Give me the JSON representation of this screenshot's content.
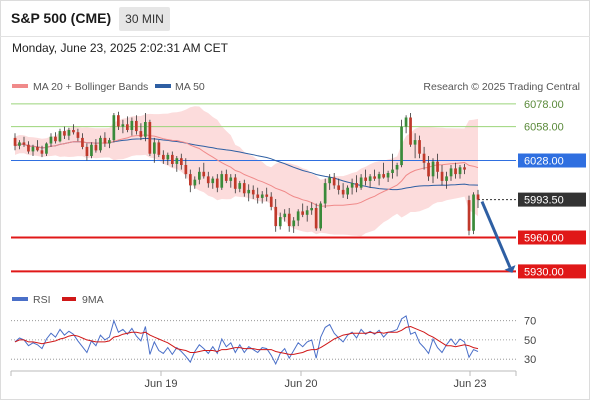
{
  "header": {
    "title": "S&P 500 (CME)",
    "timeframe": "30 MIN",
    "datetime": "Monday, June 23, 2025 2:02:31 AM CET"
  },
  "legend": {
    "ma20": "MA 20 + Bollinger Bands",
    "ma50": "MA 50",
    "credit": "Research © 2025 Trading Central",
    "rsi": "RSI",
    "ma9": "9MA"
  },
  "colors": {
    "ma20": "#f08a8a",
    "band_fill": "#fbd6d6",
    "ma50": "#2e5fa3",
    "bull": "#3a8a3a",
    "bear": "#c0392b",
    "green_level": "#9bd47a",
    "blue_level": "#2f6fe0",
    "red_level": "#e01818",
    "current": "#333333",
    "arrow": "#2e5fa3",
    "rsi": "#4a6fc8",
    "ma9": "#d01818"
  },
  "chart_data": [
    {
      "type": "candlestick",
      "title": "",
      "x_labels": [
        "Jun 19",
        "Jun 20",
        "Jun 23"
      ],
      "ylim": [
        5918,
        6085
      ],
      "levels": [
        {
          "value": 6078.0,
          "label": "6078.00",
          "style": "green"
        },
        {
          "value": 6058.0,
          "label": "6058.00",
          "style": "green"
        },
        {
          "value": 6028.0,
          "label": "6028.00",
          "style": "blue"
        },
        {
          "value": 5993.5,
          "label": "5993.50",
          "style": "current"
        },
        {
          "value": 5960.0,
          "label": "5960.00",
          "style": "red"
        },
        {
          "value": 5930.0,
          "label": "5930.00",
          "style": "red"
        }
      ],
      "candles": [
        [
          6048,
          6052,
          6037,
          6041
        ],
        [
          6041,
          6046,
          6038,
          6044
        ],
        [
          6044,
          6049,
          6040,
          6042
        ],
        [
          6042,
          6045,
          6034,
          6036
        ],
        [
          6036,
          6042,
          6032,
          6040
        ],
        [
          6040,
          6046,
          6036,
          6037
        ],
        [
          6037,
          6041,
          6031,
          6034
        ],
        [
          6034,
          6044,
          6032,
          6043
        ],
        [
          6043,
          6052,
          6040,
          6049
        ],
        [
          6049,
          6053,
          6043,
          6045
        ],
        [
          6045,
          6056,
          6044,
          6054
        ],
        [
          6054,
          6058,
          6047,
          6050
        ],
        [
          6050,
          6057,
          6046,
          6055
        ],
        [
          6055,
          6060,
          6051,
          6053
        ],
        [
          6053,
          6056,
          6045,
          6048
        ],
        [
          6048,
          6052,
          6038,
          6040
        ],
        [
          6040,
          6043,
          6028,
          6032
        ],
        [
          6032,
          6044,
          6030,
          6042
        ],
        [
          6042,
          6047,
          6035,
          6037
        ],
        [
          6037,
          6050,
          6035,
          6048
        ],
        [
          6048,
          6053,
          6040,
          6043
        ],
        [
          6043,
          6048,
          6039,
          6046
        ],
        [
          6046,
          6070,
          6044,
          6068
        ],
        [
          6068,
          6071,
          6055,
          6058
        ],
        [
          6058,
          6064,
          6052,
          6060
        ],
        [
          6060,
          6067,
          6053,
          6055
        ],
        [
          6055,
          6066,
          6050,
          6063
        ],
        [
          6063,
          6068,
          6051,
          6054
        ],
        [
          6054,
          6061,
          6046,
          6049
        ],
        [
          6049,
          6070,
          6045,
          6062
        ],
        [
          6062,
          6064,
          6032,
          6034
        ],
        [
          6034,
          6048,
          6026,
          6044
        ],
        [
          6044,
          6046,
          6031,
          6033
        ],
        [
          6033,
          6037,
          6025,
          6029
        ],
        [
          6029,
          6035,
          6024,
          6033
        ],
        [
          6033,
          6036,
          6022,
          6025
        ],
        [
          6025,
          6032,
          6018,
          6030
        ],
        [
          6030,
          6034,
          6020,
          6024
        ],
        [
          6024,
          6030,
          6012,
          6016
        ],
        [
          6016,
          6020,
          6000,
          6006
        ],
        [
          6006,
          6014,
          6003,
          6011
        ],
        [
          6011,
          6022,
          6007,
          6018
        ],
        [
          6018,
          6026,
          6012,
          6014
        ],
        [
          6014,
          6018,
          6004,
          6008
        ],
        [
          6008,
          6014,
          6003,
          6012
        ],
        [
          6012,
          6016,
          6000,
          6004
        ],
        [
          6004,
          6019,
          6002,
          6016
        ],
        [
          6016,
          6020,
          6008,
          6010
        ],
        [
          6010,
          6016,
          6004,
          6013
        ],
        [
          6013,
          6016,
          5999,
          6003
        ],
        [
          6003,
          6010,
          6000,
          6008
        ],
        [
          6008,
          6011,
          5996,
          5999
        ],
        [
          5999,
          6007,
          5992,
          6002
        ],
        [
          6002,
          6006,
          5994,
          5998
        ],
        [
          5998,
          6004,
          5990,
          5995
        ],
        [
          5995,
          6001,
          5990,
          5998
        ],
        [
          5998,
          6004,
          5992,
          5996
        ],
        [
          5996,
          6000,
          5984,
          5987
        ],
        [
          5987,
          5994,
          5965,
          5970
        ],
        [
          5970,
          5982,
          5967,
          5978
        ],
        [
          5978,
          5985,
          5974,
          5981
        ],
        [
          5981,
          5986,
          5965,
          5970
        ],
        [
          5970,
          5978,
          5964,
          5975
        ],
        [
          5975,
          5985,
          5970,
          5983
        ],
        [
          5983,
          5990,
          5978,
          5980
        ],
        [
          5980,
          5988,
          5974,
          5984
        ],
        [
          5984,
          5991,
          5980,
          5986
        ],
        [
          5986,
          5990,
          5966,
          5968
        ],
        [
          5968,
          5992,
          5966,
          5990
        ],
        [
          5990,
          6012,
          5986,
          6008
        ],
        [
          6008,
          6016,
          6002,
          6013
        ],
        [
          6013,
          6017,
          6003,
          6006
        ],
        [
          6006,
          6012,
          5998,
          6002
        ],
        [
          6002,
          6008,
          5995,
          5998
        ],
        [
          5998,
          6006,
          5994,
          6004
        ],
        [
          6004,
          6012,
          5998,
          6008
        ],
        [
          6008,
          6015,
          6000,
          6004
        ],
        [
          6004,
          6016,
          6002,
          6013
        ],
        [
          6013,
          6020,
          6006,
          6010
        ],
        [
          6010,
          6016,
          6004,
          6014
        ],
        [
          6014,
          6020,
          6010,
          6012
        ],
        [
          6012,
          6018,
          6006,
          6016
        ],
        [
          6016,
          6026,
          6012,
          6013
        ],
        [
          6013,
          6019,
          6009,
          6017
        ],
        [
          6017,
          6034,
          6012,
          6020
        ],
        [
          6020,
          6026,
          6014,
          6024
        ],
        [
          6024,
          6064,
          6022,
          6058
        ],
        [
          6058,
          6068,
          6052,
          6066
        ],
        [
          6066,
          6070,
          6040,
          6042
        ],
        [
          6042,
          6052,
          6030,
          6046
        ],
        [
          6046,
          6050,
          6030,
          6034
        ],
        [
          6034,
          6040,
          6020,
          6026
        ],
        [
          6026,
          6032,
          6010,
          6014
        ],
        [
          6014,
          6030,
          6008,
          6027
        ],
        [
          6027,
          6034,
          6012,
          6018
        ],
        [
          6018,
          6024,
          6006,
          6010
        ],
        [
          6010,
          6018,
          6003,
          6014
        ],
        [
          6014,
          6024,
          6010,
          6021
        ],
        [
          6021,
          6026,
          6012,
          6016
        ],
        [
          6016,
          6024,
          6012,
          6022
        ],
        [
          6022,
          6025,
          6016,
          6020
        ],
        [
          5993,
          5997,
          5962,
          5966
        ],
        [
          5966,
          6000,
          5963,
          5998
        ],
        [
          5998,
          6002,
          5986,
          5993.5
        ]
      ]
    },
    {
      "type": "line",
      "title": "",
      "ylim": [
        25,
        78
      ],
      "y_ticks": [
        70,
        50,
        30
      ],
      "series": [
        {
          "name": "RSI",
          "values": [
            48,
            52,
            50,
            44,
            47,
            45,
            41,
            51,
            57,
            53,
            61,
            55,
            59,
            56,
            49,
            43,
            37,
            49,
            44,
            55,
            50,
            53,
            70,
            58,
            61,
            56,
            62,
            54,
            49,
            64,
            35,
            48,
            39,
            36,
            42,
            35,
            42,
            38,
            33,
            27,
            38,
            45,
            41,
            36,
            43,
            36,
            51,
            43,
            47,
            37,
            45,
            37,
            43,
            40,
            37,
            42,
            41,
            34,
            25,
            36,
            41,
            31,
            39,
            47,
            43,
            48,
            50,
            31,
            53,
            63,
            66,
            57,
            52,
            48,
            55,
            58,
            52,
            61,
            56,
            59,
            56,
            60,
            53,
            58,
            59,
            61,
            72,
            75,
            56,
            58,
            47,
            42,
            36,
            51,
            42,
            37,
            45,
            51,
            45,
            51,
            48,
            32,
            40,
            38
          ]
        },
        {
          "name": "9MA",
          "values": [
            48,
            50,
            50,
            48,
            48,
            47,
            46,
            47,
            48,
            49,
            51,
            52,
            54,
            55,
            54,
            52,
            50,
            49,
            48,
            48,
            48,
            49,
            53,
            54,
            56,
            57,
            58,
            58,
            57,
            58,
            55,
            53,
            51,
            49,
            47,
            44,
            41,
            40,
            39,
            37,
            37,
            38,
            39,
            39,
            39,
            38,
            40,
            40,
            41,
            42,
            42,
            41,
            41,
            41,
            40,
            40,
            40,
            40,
            38,
            37,
            36,
            35,
            35,
            36,
            37,
            39,
            40,
            40,
            42,
            45,
            48,
            51,
            53,
            55,
            56,
            57,
            57,
            57,
            57,
            58,
            57,
            58,
            57,
            58,
            58,
            58,
            60,
            63,
            64,
            62,
            60,
            58,
            55,
            53,
            50,
            47,
            44,
            44,
            43,
            44,
            45,
            44,
            42,
            41
          ]
        }
      ]
    }
  ]
}
